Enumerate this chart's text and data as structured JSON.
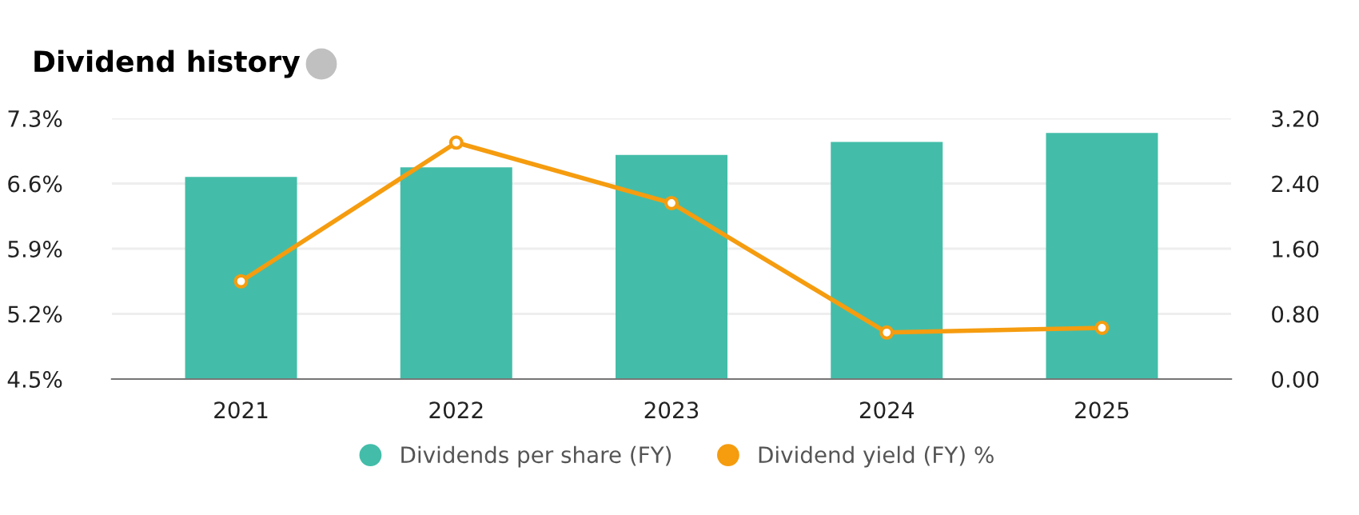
{
  "chart_data": {
    "type": "bar",
    "title": "Dividend history",
    "categories": [
      "2021",
      "2022",
      "2023",
      "2024",
      "2025"
    ],
    "series": [
      {
        "name": "Dividends per share (FY)",
        "axis": "y2",
        "color": "#43bda9",
        "values": [
          2.48,
          2.6,
          2.75,
          2.91,
          3.02
        ]
      },
      {
        "name": "Dividend yield (FY) %",
        "type": "line",
        "color": "#f59c0f",
        "marker": "circle",
        "values": [
          5.55,
          7.04,
          6.39,
          5.0,
          5.05
        ]
      }
    ],
    "ylim": [
      4.5,
      7.3
    ],
    "yticks": [
      {
        "value": 4.5,
        "label": "4.5%"
      },
      {
        "value": 5.2,
        "label": "5.2%"
      },
      {
        "value": 5.9,
        "label": "5.9%"
      },
      {
        "value": 6.6,
        "label": "6.6%"
      },
      {
        "value": 7.3,
        "label": "7.3%"
      }
    ],
    "y2lim": [
      0,
      3.2
    ],
    "y2ticks": [
      {
        "value": 0,
        "label": "0.00"
      },
      {
        "value": 0.8,
        "label": "0.80"
      },
      {
        "value": 1.6,
        "label": "1.60"
      },
      {
        "value": 2.4,
        "label": "2.40"
      },
      {
        "value": 3.2,
        "label": "3.20"
      }
    ],
    "grid": "y",
    "legend": "bottom"
  }
}
